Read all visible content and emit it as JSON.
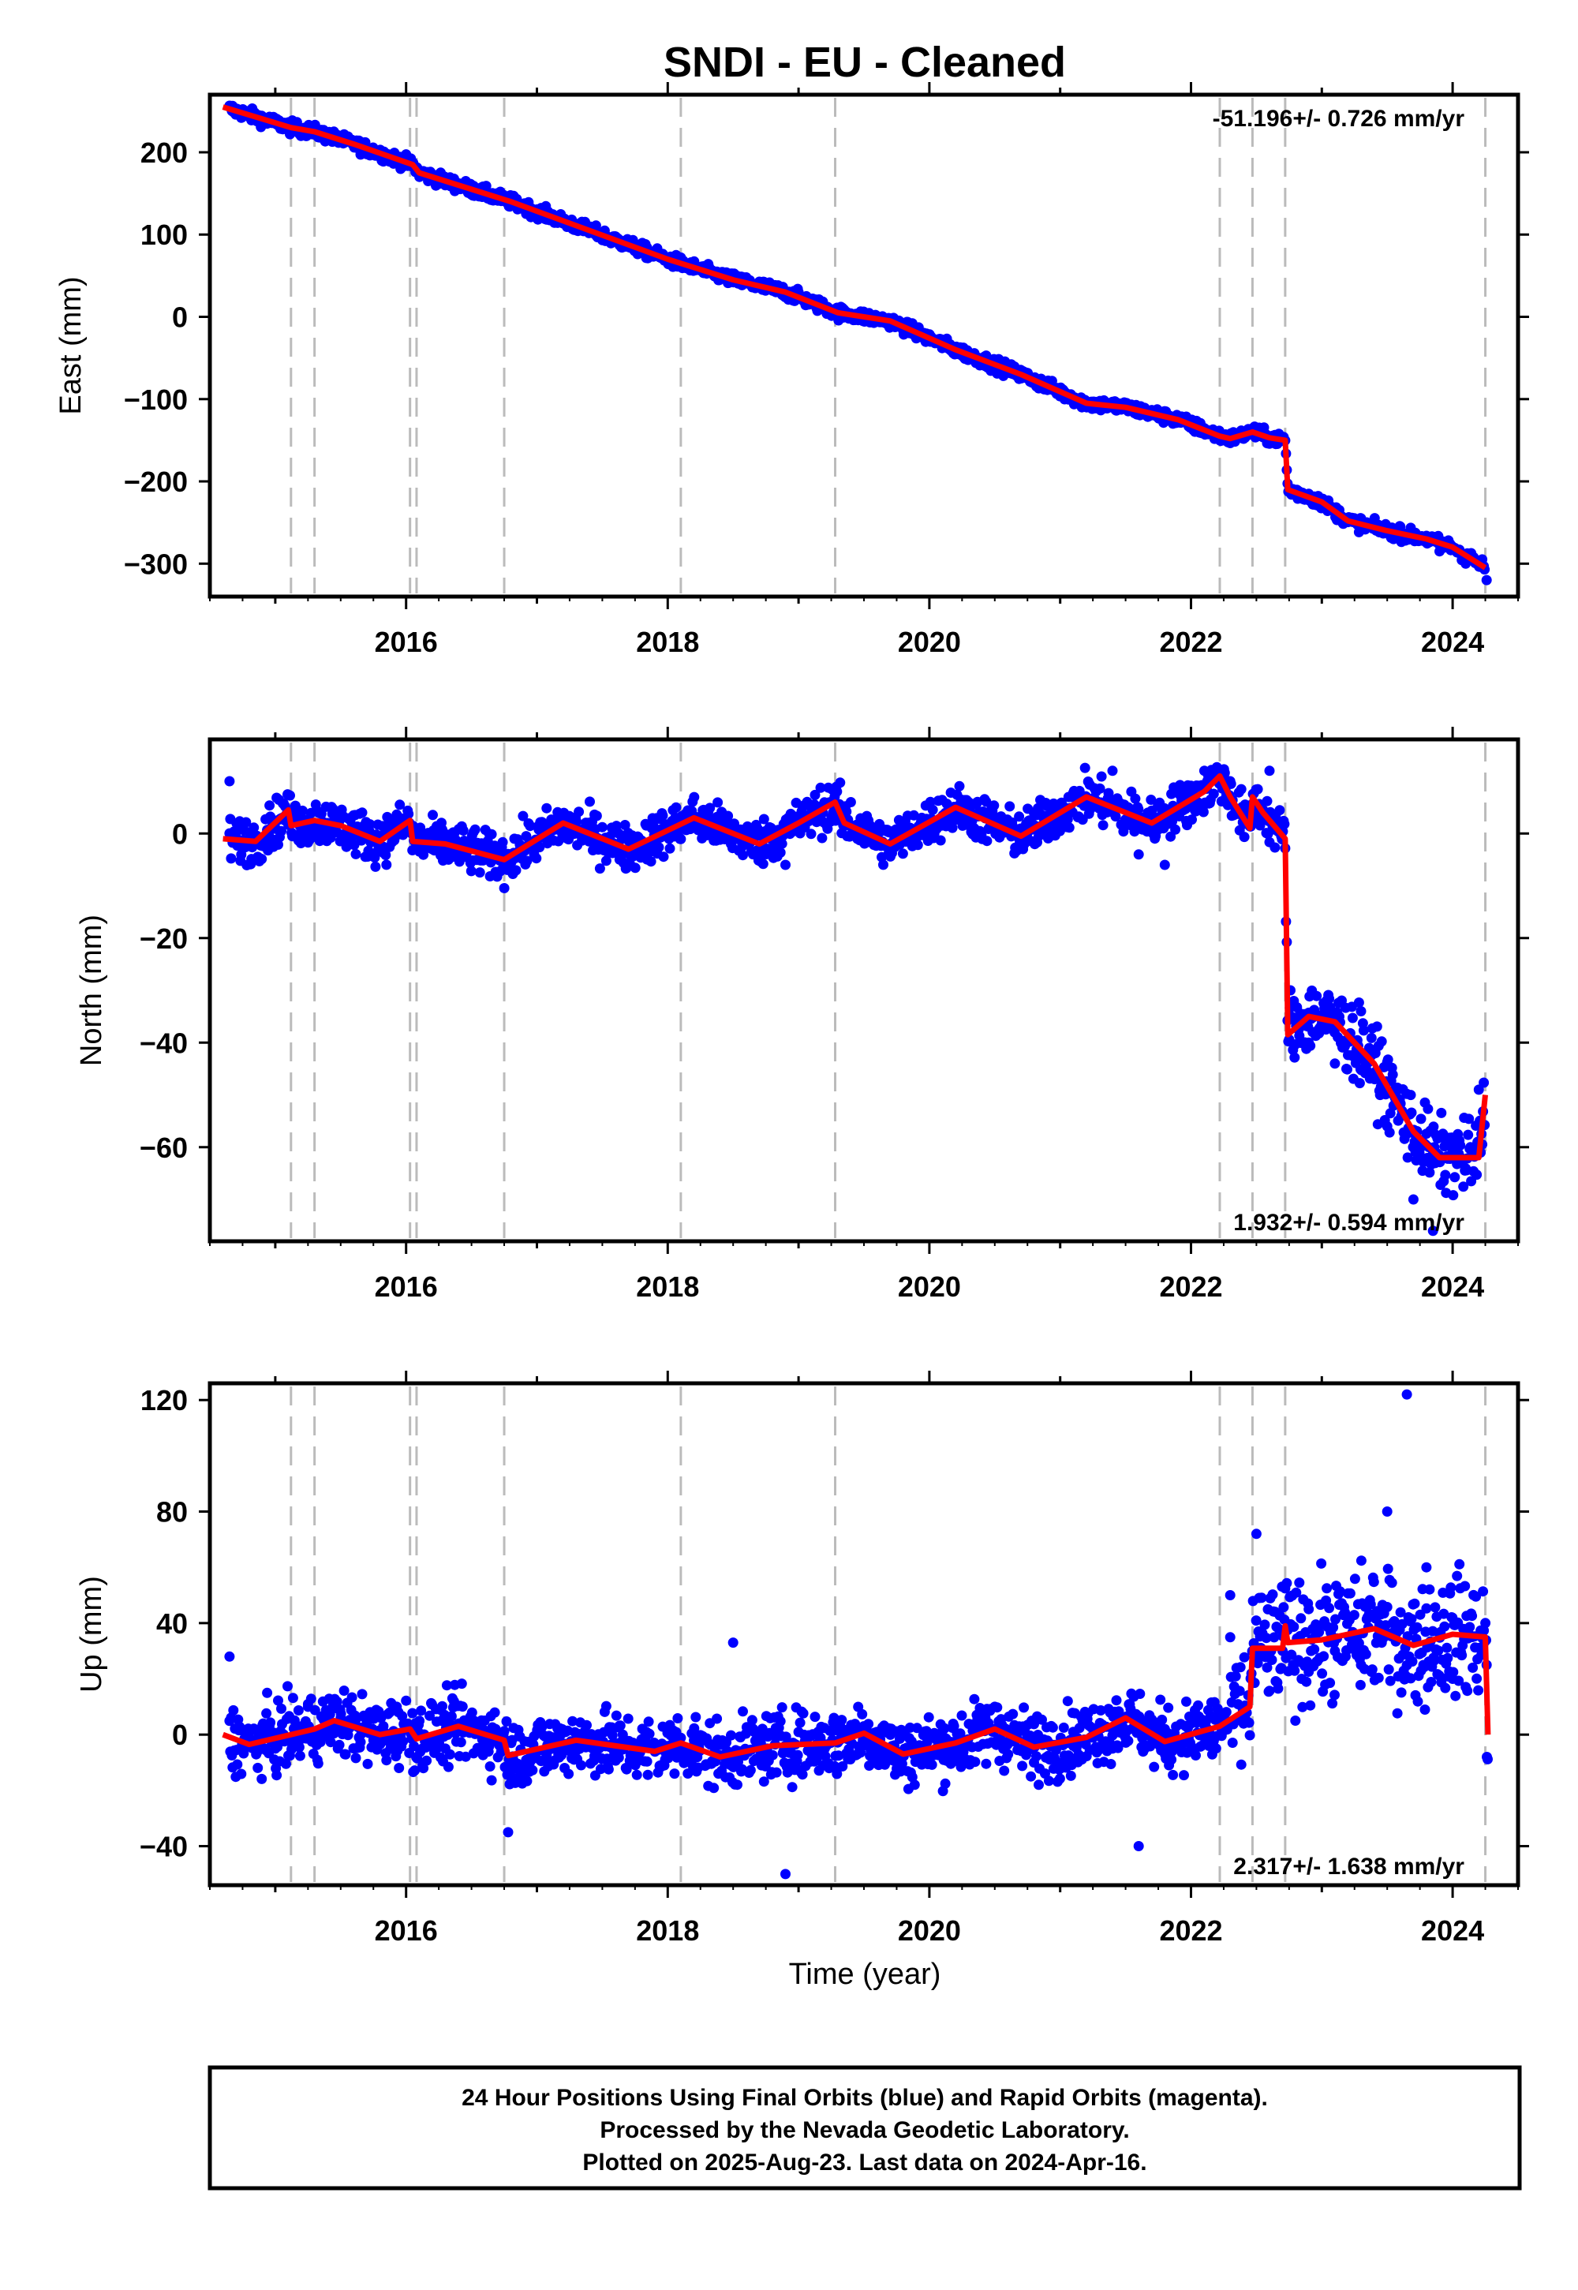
{
  "title": "SNDI  - EU - Cleaned",
  "xlabel": "Time (year)",
  "colors": {
    "data": "#0000ff",
    "model": "#ff0000",
    "break_lines": "#bbbbbb",
    "frame": "#000000"
  },
  "chart_data": [
    {
      "type": "scatter",
      "panel": "east",
      "ylabel": "East (mm)",
      "ylim": [
        -340,
        270
      ],
      "xlim": [
        2014.5,
        2024.5
      ],
      "yticks": [
        200,
        100,
        0,
        -100,
        -200,
        -300
      ],
      "xticks": [
        2016,
        2018,
        2020,
        2022,
        2024
      ],
      "rate_label": "-51.196+/- 0.726 mm/yr",
      "rate_label_position": "top-right",
      "break_years": [
        2015.12,
        2015.3,
        2016.03,
        2016.08,
        2016.75,
        2018.1,
        2019.28,
        2022.22,
        2022.47,
        2022.72,
        2024.25
      ],
      "series": [
        {
          "role": "model",
          "x": [
            2014.6,
            2015.12,
            2015.3,
            2015.6,
            2016.05,
            2016.1,
            2016.8,
            2017.4,
            2018.0,
            2018.5,
            2018.9,
            2019.3,
            2019.7,
            2020.2,
            2020.7,
            2021.2,
            2021.5,
            2021.9,
            2022.22,
            2022.3,
            2022.47,
            2022.6,
            2022.72,
            2022.74,
            2023.0,
            2023.2,
            2023.5,
            2023.8,
            2024.0,
            2024.25
          ],
          "y": [
            255,
            230,
            225,
            210,
            185,
            175,
            140,
            105,
            70,
            45,
            30,
            5,
            -5,
            -40,
            -70,
            -105,
            -110,
            -125,
            -145,
            -148,
            -140,
            -147,
            -150,
            -210,
            -225,
            -248,
            -260,
            -270,
            -280,
            -305
          ]
        },
        {
          "role": "observations",
          "x": [
            2014.7,
            2014.9,
            2015.2,
            2015.5,
            2015.8,
            2016.0,
            2016.4,
            2016.9,
            2017.3,
            2017.7,
            2018.2,
            2018.6,
            2019.0,
            2019.4,
            2019.9,
            2020.3,
            2020.8,
            2021.2,
            2021.6,
            2022.0,
            2022.3,
            2022.6,
            2022.9,
            2023.3,
            2023.6,
            2023.9,
            2024.1,
            2024.26
          ],
          "y": [
            246,
            238,
            226,
            214,
            198,
            186,
            162,
            134,
            106,
            88,
            64,
            48,
            30,
            4,
            -20,
            -50,
            -78,
            -104,
            -112,
            -132,
            -150,
            -145,
            -215,
            -245,
            -255,
            -285,
            -300,
            -320
          ]
        }
      ]
    },
    {
      "type": "scatter",
      "panel": "north",
      "ylabel": "North (mm)",
      "ylim": [
        -78,
        18
      ],
      "xlim": [
        2014.5,
        2024.5
      ],
      "yticks": [
        0,
        -20,
        -40,
        -60
      ],
      "xticks": [
        2016,
        2018,
        2020,
        2022,
        2024
      ],
      "rate_label": "1.932+/- 0.594 mm/yr",
      "rate_label_position": "bottom-right",
      "break_years": [
        2015.12,
        2015.3,
        2016.03,
        2016.08,
        2016.75,
        2018.1,
        2019.28,
        2022.22,
        2022.47,
        2022.72,
        2024.25
      ],
      "series": [
        {
          "role": "model",
          "x": [
            2014.6,
            2014.85,
            2015.1,
            2015.12,
            2015.3,
            2015.5,
            2015.8,
            2016.03,
            2016.05,
            2016.3,
            2016.75,
            2017.2,
            2017.7,
            2018.2,
            2018.7,
            2019.0,
            2019.28,
            2019.35,
            2019.7,
            2020.2,
            2020.7,
            2021.2,
            2021.7,
            2022.1,
            2022.22,
            2022.3,
            2022.45,
            2022.47,
            2022.55,
            2022.72,
            2022.74,
            2022.9,
            2023.1,
            2023.4,
            2023.7,
            2023.9,
            2024.2,
            2024.25
          ],
          "y": [
            -1,
            -1.5,
            4.5,
            1.5,
            2.5,
            1.5,
            -1.5,
            2.5,
            -1.5,
            -2,
            -5,
            2,
            -3,
            3,
            -2,
            2,
            6,
            2,
            -2,
            5,
            -0.5,
            7,
            2,
            8,
            11,
            7,
            1,
            7,
            4,
            -1,
            -38.5,
            -35,
            -36,
            -44,
            -57,
            -62,
            -62,
            -50
          ]
        },
        {
          "role": "observations",
          "x": [
            2014.65,
            2014.75,
            2014.95,
            2015.2,
            2015.4,
            2015.7,
            2015.95,
            2016.2,
            2016.5,
            2016.8,
            2017.1,
            2017.4,
            2017.8,
            2018.1,
            2018.3,
            2018.6,
            2018.9,
            2019.1,
            2019.4,
            2019.7,
            2020.0,
            2020.3,
            2020.6,
            2020.9,
            2021.2,
            2021.4,
            2021.6,
            2021.8,
            2022.05,
            2022.3,
            2022.6,
            2022.76,
            2022.9,
            2023.1,
            2023.3,
            2023.5,
            2023.7,
            2023.85,
            2024.0,
            2024.2
          ],
          "y": [
            10,
            1,
            0,
            3,
            2,
            -1,
            0,
            -3,
            -2,
            -5,
            1,
            2,
            -2,
            2,
            4,
            -2,
            -6,
            4,
            6,
            -2,
            1,
            6,
            1,
            0,
            7,
            12,
            -4,
            -6,
            6,
            10,
            12,
            -30,
            -40,
            -44,
            -34,
            -56,
            -70,
            -76,
            -60,
            -49
          ]
        }
      ]
    },
    {
      "type": "scatter",
      "panel": "up",
      "ylabel": "Up (mm)",
      "ylim": [
        -54,
        126
      ],
      "xlim": [
        2014.5,
        2024.5
      ],
      "yticks": [
        120,
        80,
        40,
        0,
        -40
      ],
      "xticks": [
        2016,
        2018,
        2020,
        2022,
        2024
      ],
      "rate_label": "2.317+/- 1.638 mm/yr",
      "rate_label_position": "bottom-right",
      "break_years": [
        2015.12,
        2015.3,
        2016.03,
        2016.08,
        2016.75,
        2018.1,
        2019.28,
        2022.22,
        2022.47,
        2022.72,
        2024.25
      ],
      "series": [
        {
          "role": "model",
          "x": [
            2014.6,
            2014.8,
            2015.12,
            2015.3,
            2015.45,
            2015.8,
            2016.03,
            2016.08,
            2016.4,
            2016.75,
            2016.78,
            2017.3,
            2017.9,
            2018.1,
            2018.4,
            2018.8,
            2019.28,
            2019.5,
            2019.8,
            2020.2,
            2020.5,
            2020.8,
            2021.2,
            2021.5,
            2021.8,
            2022.22,
            2022.45,
            2022.47,
            2022.7,
            2022.72,
            2022.74,
            2023.0,
            2023.4,
            2023.7,
            2024.0,
            2024.25,
            2024.27
          ],
          "y": [
            0,
            -3.5,
            0,
            2,
            5,
            0,
            2,
            -1.5,
            3,
            -2,
            -7.5,
            -2,
            -6,
            -3,
            -8,
            -4,
            -3,
            0.5,
            -7,
            -3,
            2,
            -4.5,
            -1,
            6,
            -2.5,
            3,
            10,
            31,
            31,
            39,
            33,
            34,
            38,
            32,
            36,
            35,
            0
          ]
        },
        {
          "role": "observations",
          "x": [
            2014.65,
            2014.8,
            2015.0,
            2015.25,
            2015.5,
            2015.75,
            2016.0,
            2016.3,
            2016.6,
            2016.78,
            2017.0,
            2017.4,
            2017.8,
            2018.2,
            2018.5,
            2018.7,
            2018.9,
            2019.2,
            2019.6,
            2019.9,
            2020.2,
            2020.5,
            2020.8,
            2021.1,
            2021.4,
            2021.6,
            2021.8,
            2022.0,
            2022.3,
            2022.5,
            2022.7,
            2022.9,
            2023.1,
            2023.3,
            2023.5,
            2023.65,
            2023.8,
            2024.0,
            2024.15,
            2024.26
          ],
          "y": [
            28,
            -3,
            -5,
            10,
            6,
            -2,
            3,
            -5,
            5,
            -35,
            -6,
            -1,
            -5,
            -2,
            33,
            -8,
            -50,
            -5,
            1,
            -6,
            -3,
            10,
            -10,
            1,
            -5,
            -40,
            2,
            4,
            50,
            72,
            30,
            45,
            30,
            25,
            80,
            122,
            60,
            20,
            35,
            25
          ]
        }
      ]
    }
  ],
  "footer": {
    "line1": "24 Hour Positions Using Final Orbits (blue) and Rapid Orbits (magenta).",
    "line2": "Processed by the Nevada Geodetic Laboratory.",
    "line3": "Plotted on 2025-Aug-23. Last data on 2024-Apr-16."
  }
}
